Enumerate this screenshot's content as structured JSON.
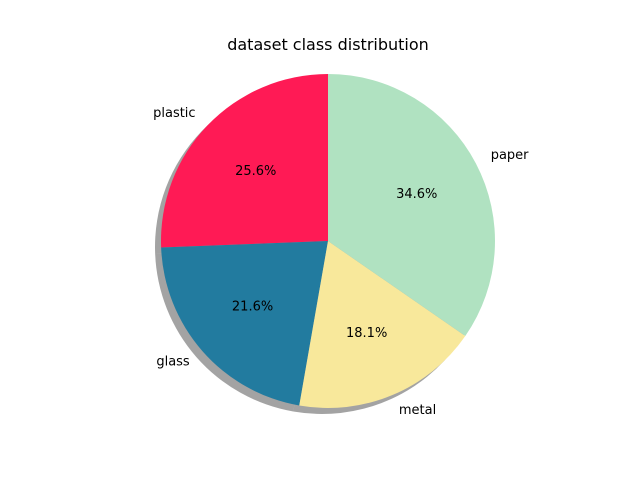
{
  "chart_data": {
    "type": "pie",
    "title": "dataset class distribution",
    "categories": [
      "plastic",
      "glass",
      "metal",
      "paper"
    ],
    "values": [
      25.6,
      21.6,
      18.1,
      34.6
    ],
    "percent_labels": [
      "25.6%",
      "21.6%",
      "18.1%",
      "34.6%"
    ],
    "colors": [
      "#ff1a55",
      "#227b9f",
      "#f8e89b",
      "#b0e2c1"
    ],
    "start_angle_deg": 90,
    "direction": "counterclockwise",
    "shadow": true,
    "legend": false,
    "grid": false
  }
}
